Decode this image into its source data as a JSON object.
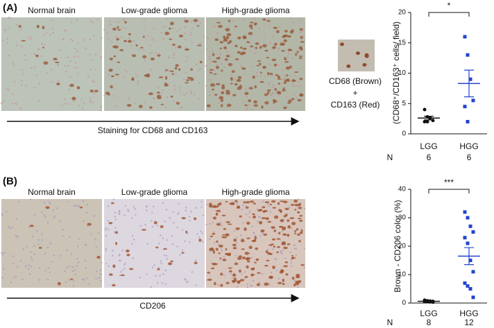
{
  "panels": [
    {
      "label": "(A)",
      "images": [
        "Normal brain",
        "Low-grade glioma",
        "High-grade glioma"
      ],
      "axis_caption": "Staining for CD68  and CD163",
      "legend": [
        "CD68 (Brown)",
        "+",
        "CD163 (Red)"
      ]
    },
    {
      "label": "(B)",
      "images": [
        "Normal brain",
        "Low-grade glioma",
        "High-grade glioma"
      ],
      "axis_caption": "CD206"
    }
  ],
  "chart_data": [
    {
      "type": "strip",
      "y_label": "(CD68⁺/CD163⁺ cells/ field)",
      "categories": [
        "LGG",
        "HGG"
      ],
      "n_label": "N",
      "n": [
        6,
        6
      ],
      "significance": "*",
      "ylim": [
        0,
        20
      ],
      "yticks": [
        0,
        5,
        10,
        15,
        20
      ],
      "series": [
        {
          "color": "#111111",
          "marker": "circle",
          "values": [
            4.0,
            2.8,
            2.6,
            2.2,
            2.0,
            2.0
          ],
          "mean": 2.6,
          "sem": 0.3
        },
        {
          "color": "#2244cc",
          "marker": "square",
          "values": [
            16,
            13,
            9,
            5.5,
            4.5,
            2
          ],
          "mean": 8.3,
          "sem": 2.2
        }
      ]
    },
    {
      "type": "strip",
      "y_label": "Brown - CD206 color  (%)",
      "categories": [
        "LGG",
        "HGG"
      ],
      "n_label": "N",
      "n": [
        8,
        12
      ],
      "significance": "***",
      "ylim": [
        0,
        40
      ],
      "yticks": [
        0,
        10,
        20,
        30,
        40
      ],
      "series": [
        {
          "color": "#111111",
          "marker": "circle",
          "values": [
            1,
            0.8,
            0.7,
            0.6,
            0.5,
            0.5,
            0.4,
            0.3
          ],
          "mean": 0.6,
          "sem": 0.1
        },
        {
          "color": "#2244cc",
          "marker": "square",
          "values": [
            32,
            30,
            27,
            25,
            23,
            21,
            15,
            11,
            7,
            6,
            5,
            2
          ],
          "mean": 16.5,
          "sem": 3
        }
      ]
    }
  ]
}
